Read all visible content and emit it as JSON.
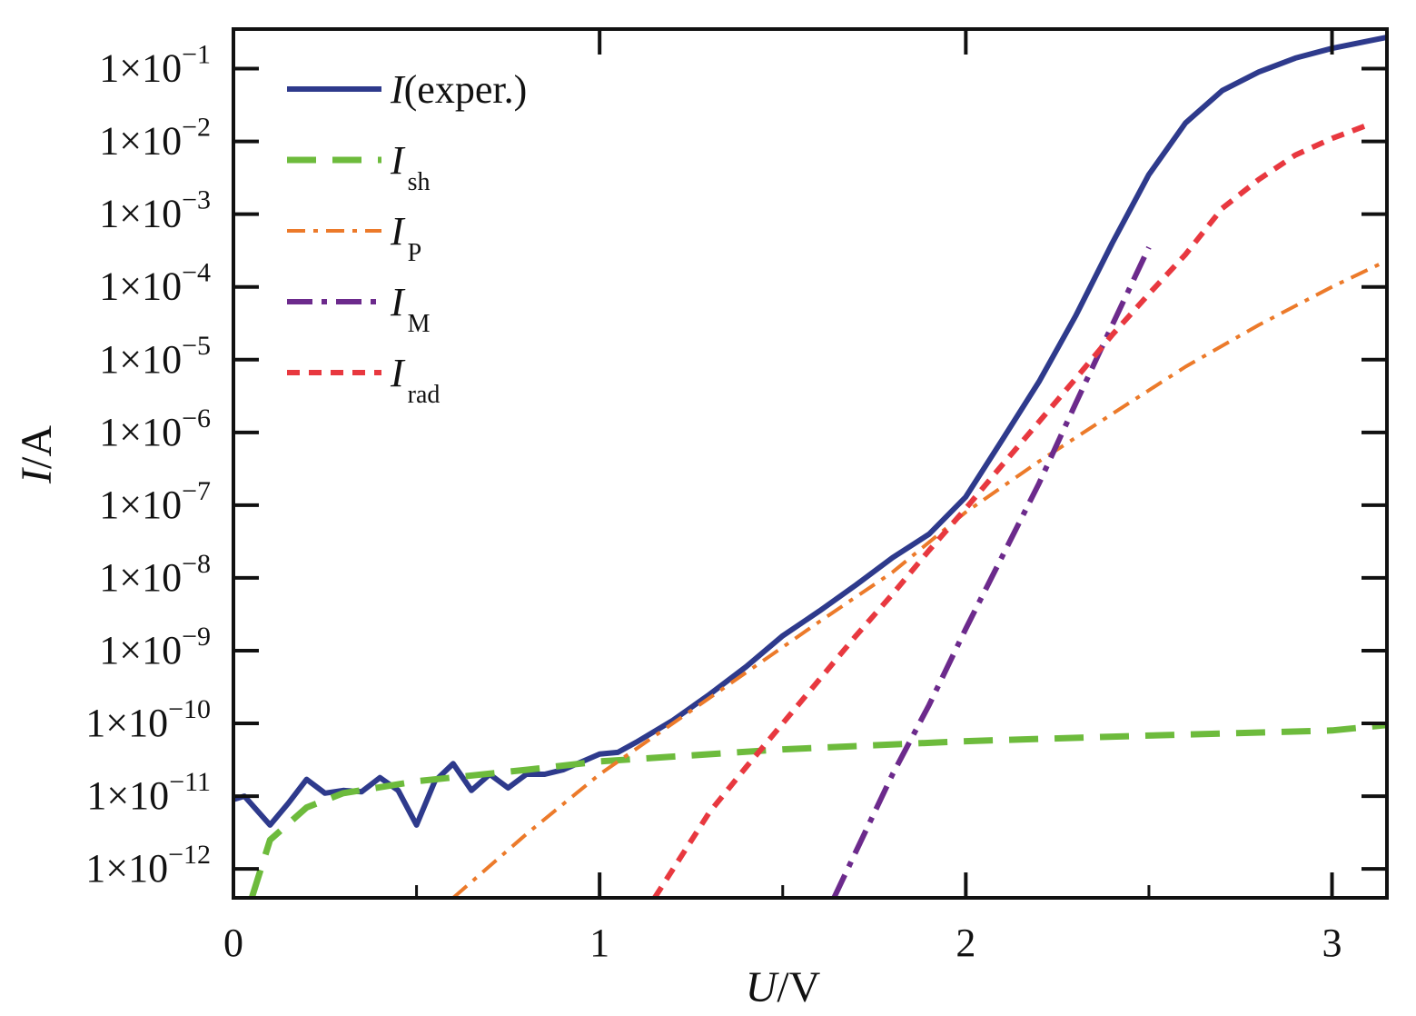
{
  "chart_data": {
    "type": "line",
    "title": "",
    "xlabel": {
      "italic": "U",
      "rest": "/V"
    },
    "ylabel": {
      "italic": "I",
      "rest": "/A"
    },
    "xscale": "linear",
    "yscale": "log",
    "xlim": [
      0,
      3.15
    ],
    "ylim": [
      4e-13,
      0.35
    ],
    "legend_position": "top-left",
    "grid": false,
    "x_ticks": [
      {
        "value": 0,
        "label": "0"
      },
      {
        "value": 1,
        "label": "1"
      },
      {
        "value": 2,
        "label": "2"
      },
      {
        "value": 3,
        "label": "3"
      }
    ],
    "y_ticks": [
      {
        "value": 1e-12,
        "mantissa": "1×10",
        "exponent": "−12"
      },
      {
        "value": 1e-11,
        "mantissa": "1×10",
        "exponent": "−11"
      },
      {
        "value": 1e-10,
        "mantissa": "1×10",
        "exponent": "−10"
      },
      {
        "value": 1e-09,
        "mantissa": "1×10",
        "exponent": "−9"
      },
      {
        "value": 1e-08,
        "mantissa": "1×10",
        "exponent": "−8"
      },
      {
        "value": 1e-07,
        "mantissa": "1×10",
        "exponent": "−7"
      },
      {
        "value": 1e-06,
        "mantissa": "1×10",
        "exponent": "−6"
      },
      {
        "value": 1e-05,
        "mantissa": "1×10",
        "exponent": "−5"
      },
      {
        "value": 0.0001,
        "mantissa": "1×10",
        "exponent": "−4"
      },
      {
        "value": 0.001,
        "mantissa": "1×10",
        "exponent": "−3"
      },
      {
        "value": 0.01,
        "mantissa": "1×10",
        "exponent": "−2"
      },
      {
        "value": 0.1,
        "mantissa": "1×10",
        "exponent": "−1"
      }
    ],
    "series": [
      {
        "name": "I(exper.)",
        "legend_main": "I",
        "legend_rest": "(exper.)",
        "legend_sub": "",
        "color": "#2e3a8c",
        "dash": "",
        "width": 6,
        "x": [
          0.0,
          0.03,
          0.1,
          0.15,
          0.2,
          0.25,
          0.3,
          0.35,
          0.4,
          0.45,
          0.5,
          0.55,
          0.6,
          0.65,
          0.7,
          0.75,
          0.8,
          0.85,
          0.9,
          1.0,
          1.05,
          1.1,
          1.2,
          1.3,
          1.4,
          1.5,
          1.6,
          1.7,
          1.8,
          1.9,
          2.0,
          2.1,
          2.2,
          2.3,
          2.4,
          2.5,
          2.6,
          2.7,
          2.8,
          2.9,
          3.0,
          3.1,
          3.15
        ],
        "y": [
          9e-12,
          1e-11,
          4e-12,
          8e-12,
          1.7e-11,
          1.1e-11,
          1.2e-11,
          1.15e-11,
          1.8e-11,
          1.2e-11,
          4e-12,
          1.6e-11,
          2.8e-11,
          1.2e-11,
          2e-11,
          1.3e-11,
          2e-11,
          2e-11,
          2.3e-11,
          3.8e-11,
          4e-11,
          5.5e-11,
          1.1e-10,
          2.5e-10,
          6e-10,
          1.6e-09,
          3.5e-09,
          8e-09,
          1.9e-08,
          4e-08,
          1.3e-07,
          8e-07,
          5e-06,
          4e-05,
          0.0004,
          0.0035,
          0.018,
          0.05,
          0.09,
          0.14,
          0.19,
          0.24,
          0.27
        ]
      },
      {
        "name": "Ish",
        "legend_main": "I",
        "legend_rest": "",
        "legend_sub": "sh",
        "color": "#6dbb3c",
        "dash": "32 18",
        "width": 7,
        "x": [
          0.05,
          0.1,
          0.2,
          0.3,
          0.5,
          0.8,
          1.0,
          1.5,
          2.0,
          2.5,
          3.0,
          3.15
        ],
        "y": [
          4e-13,
          2.5e-12,
          7e-12,
          1.1e-11,
          1.6e-11,
          2.3e-11,
          3e-11,
          4.4e-11,
          5.7e-11,
          6.8e-11,
          8e-11,
          9.5e-11
        ]
      },
      {
        "name": "IP",
        "legend_main": "I",
        "legend_rest": "",
        "legend_sub": "P",
        "color": "#ec7a2a",
        "dash": "20 9 5 9",
        "width": 4,
        "x": [
          0.6,
          0.8,
          1.0,
          1.2,
          1.4,
          1.6,
          1.8,
          2.0,
          2.2,
          2.4,
          2.6,
          2.8,
          3.0,
          3.15
        ],
        "y": [
          4e-13,
          3e-12,
          2e-11,
          1e-10,
          5e-10,
          2.5e-09,
          1.2e-08,
          8e-08,
          4e-07,
          1.8e-06,
          8e-06,
          3e-05,
          0.0001,
          0.00023
        ]
      },
      {
        "name": "IM",
        "legend_main": "I",
        "legend_rest": "",
        "legend_sub": "M",
        "color": "#6c2a8c",
        "dash": "28 10 6 10",
        "width": 6,
        "x": [
          1.64,
          1.8,
          1.9,
          2.0,
          2.1,
          2.2,
          2.3,
          2.4,
          2.5
        ],
        "y": [
          4e-13,
          2e-11,
          1.8e-10,
          2e-09,
          2e-08,
          2e-07,
          2.5e-06,
          3e-05,
          0.00035
        ]
      },
      {
        "name": "Irad",
        "legend_main": "I",
        "legend_rest": "",
        "legend_sub": "rad",
        "color": "#e8383f",
        "dash": "14 10",
        "width": 6,
        "x": [
          1.15,
          1.3,
          1.4,
          1.5,
          1.6,
          1.7,
          1.8,
          1.9,
          2.0,
          2.1,
          2.2,
          2.3,
          2.4,
          2.5,
          2.6,
          2.7,
          2.8,
          2.9,
          3.0,
          3.1
        ],
        "y": [
          4e-13,
          6e-12,
          2.5e-11,
          1e-10,
          4e-10,
          1.6e-09,
          6e-09,
          2.4e-08,
          9e-08,
          3.6e-07,
          1.4e-06,
          5.5e-06,
          2.2e-05,
          8e-05,
          0.00028,
          0.0012,
          0.003,
          0.0065,
          0.011,
          0.017
        ]
      }
    ]
  }
}
